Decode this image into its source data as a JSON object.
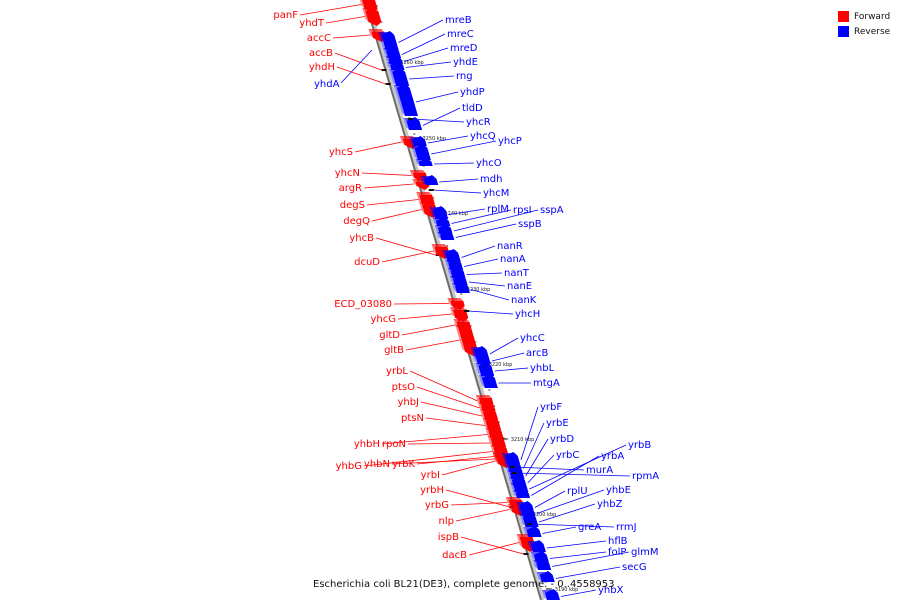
{
  "caption": "Escherichia coli BL21(DE3), complete genome. - 0..4558953",
  "legend": [
    {
      "label": "Forward",
      "color": "#ff0000"
    },
    {
      "label": "Reverse",
      "color": "#0000ff"
    }
  ],
  "ticks": [
    "3260 kbp",
    "3250 kbp",
    "3240 kbp",
    "3230 kbp",
    "3220 kbp",
    "3210 kbp",
    "3200 kbp",
    "3190 kbp"
  ],
  "genes_forward": [
    "panF",
    "yhdT",
    "accC",
    "accB",
    "yhdH",
    "yhcS",
    "yhcN",
    "argR",
    "degS",
    "degQ",
    "yhcB",
    "dcuD",
    "ECD_03080",
    "yhcG",
    "gltD",
    "gltB",
    "yrbL",
    "ptsO",
    "yhbJ",
    "ptsN",
    "yhbH",
    "rpoN",
    "yhbG",
    "yhbN",
    "yrbK",
    "yrbI",
    "yrbH",
    "yrbG",
    "nlp",
    "ispB",
    "dacB"
  ],
  "genes_reverse": [
    "yhdA",
    "mreB",
    "mreC",
    "mreD",
    "yhdE",
    "rng",
    "yhdP",
    "tldD",
    "yhcR",
    "yhcQ",
    "yhcP",
    "yhcO",
    "mdh",
    "yhcM",
    "rplM",
    "rpsI",
    "sspA",
    "sspB",
    "nanR",
    "nanA",
    "nanT",
    "nanE",
    "nanK",
    "yhcH",
    "yhcC",
    "arcB",
    "yhbL",
    "mtgA",
    "yrbF",
    "yrbE",
    "yrbD",
    "yrbC",
    "yrbB",
    "yrbA",
    "murA",
    "rpmA",
    "rplU",
    "yhbE",
    "yhbZ",
    "greA",
    "rrmJ",
    "hflB",
    "folP",
    "glmM",
    "secG",
    "yhbX"
  ]
}
